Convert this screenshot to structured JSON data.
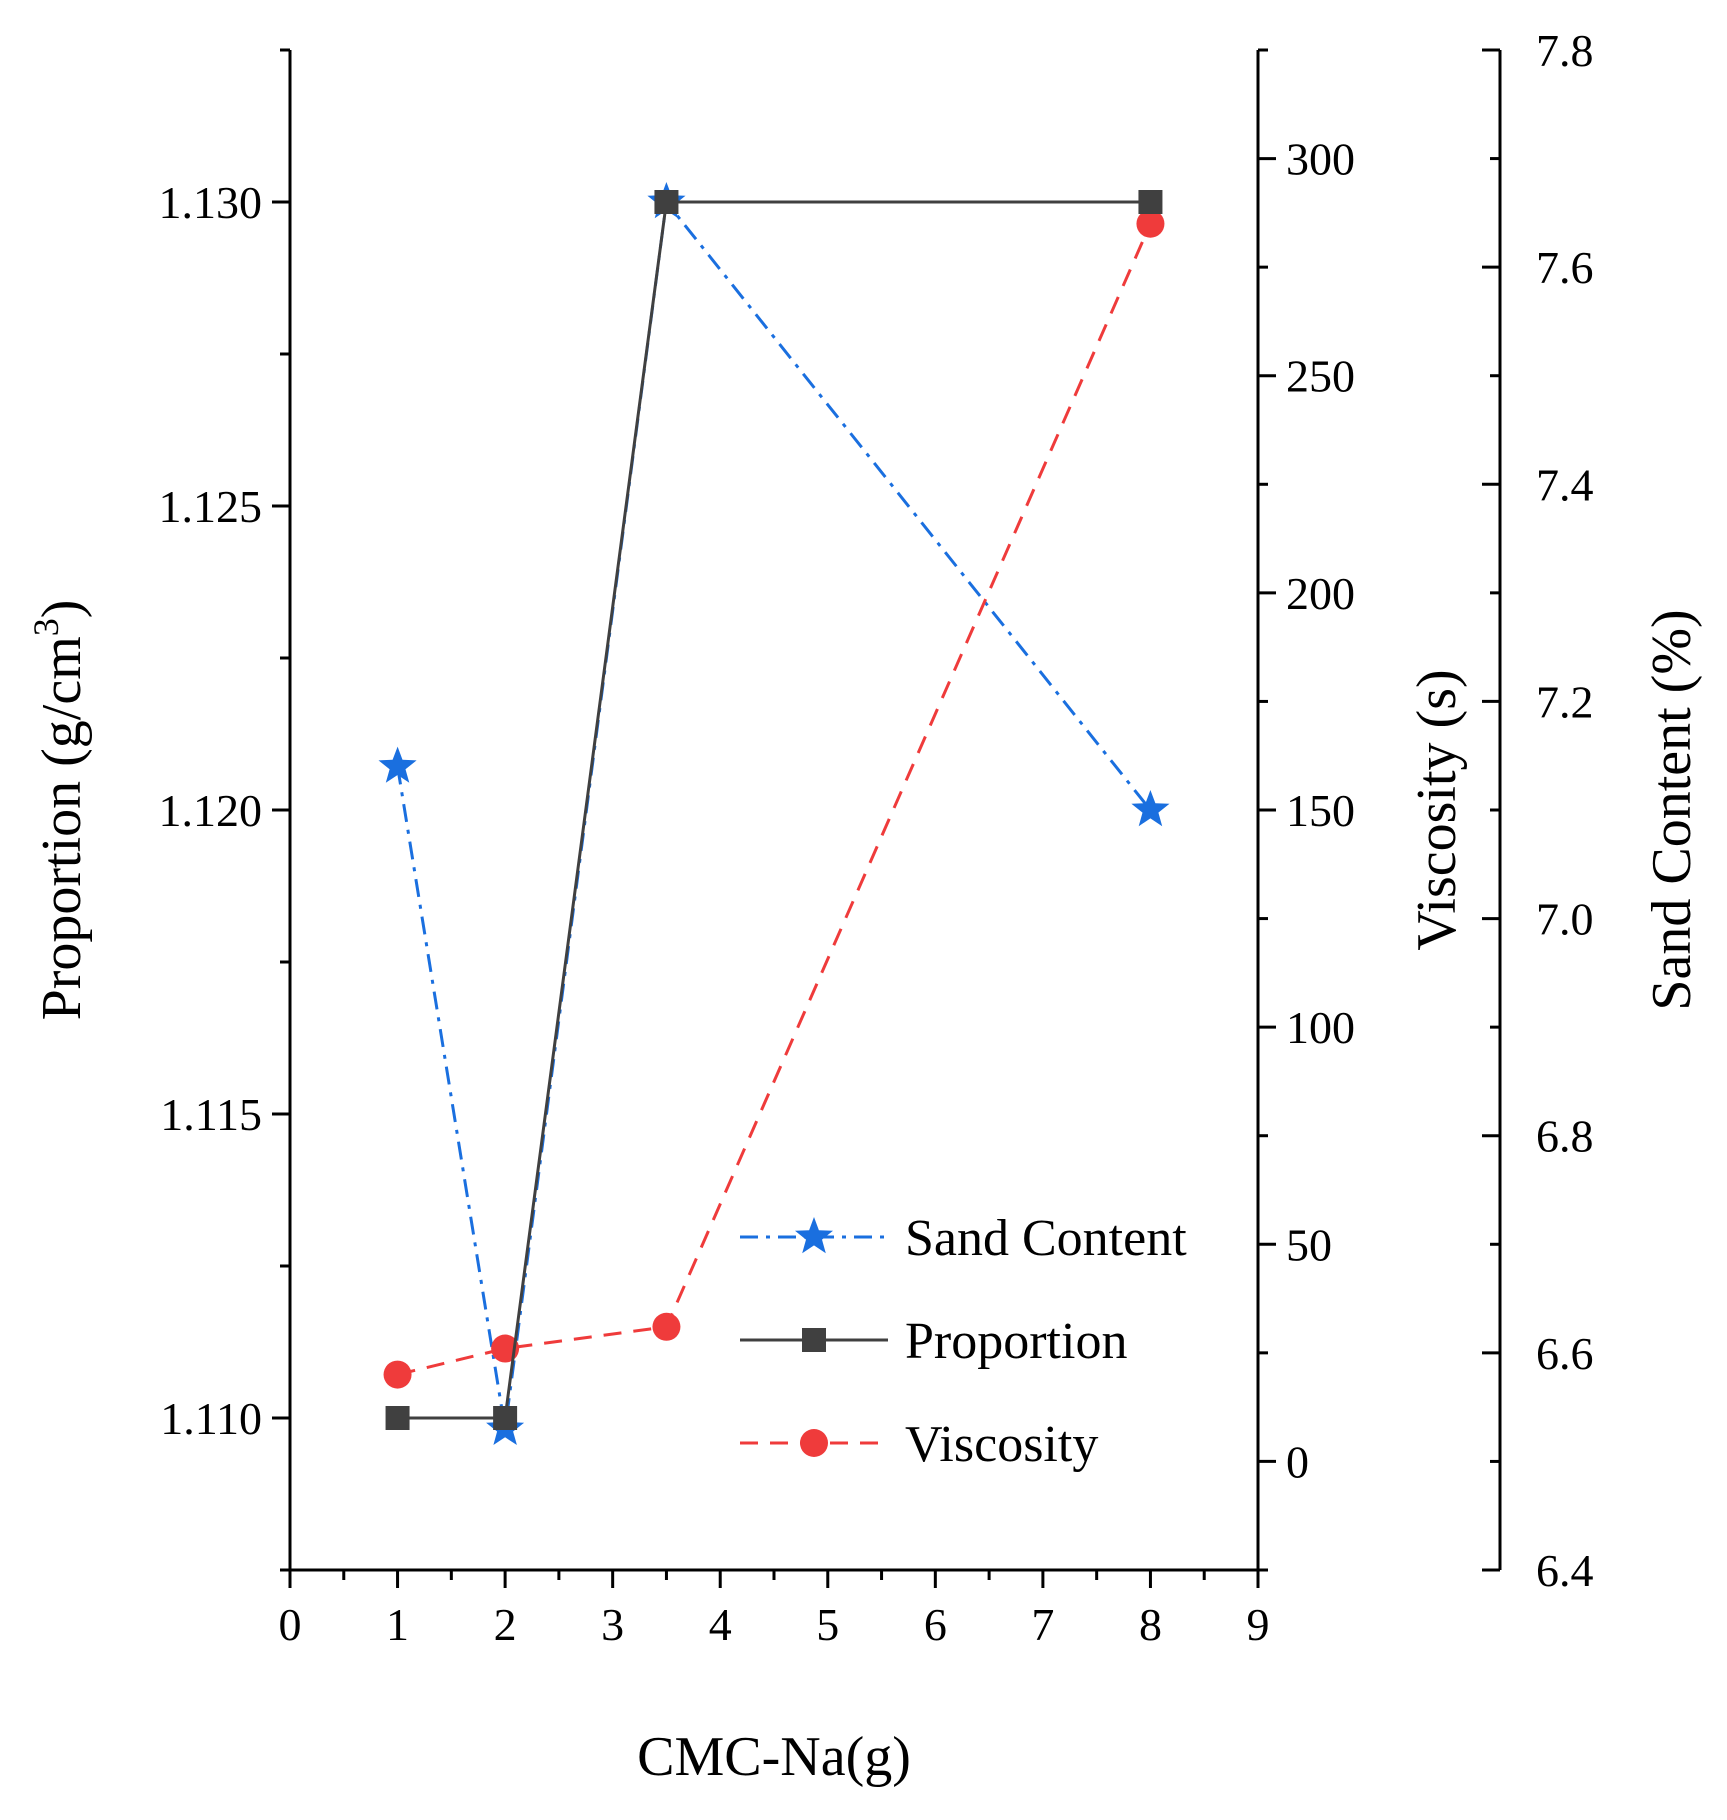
{
  "chart_data": {
    "type": "line",
    "title": "",
    "xlabel": "CMC-Na(g)",
    "xlim": [
      0,
      9
    ],
    "xticks": [
      "0",
      "1",
      "2",
      "3",
      "4",
      "5",
      "6",
      "7",
      "8",
      "9"
    ],
    "legend_position": "bottom-right",
    "axes": {
      "proportion": {
        "label_prefix": "Proportion (g/cm",
        "label_superscript": "3",
        "label_suffix": ")",
        "side": "left",
        "ylim": [
          1.1075,
          1.1325
        ],
        "ticks": [
          "1.110",
          "1.115",
          "1.120",
          "1.125",
          "1.130"
        ]
      },
      "viscosity": {
        "label": "Viscosity (s)",
        "side": "right-inner",
        "ylim": [
          -25,
          325
        ],
        "ticks": [
          "0",
          "50",
          "100",
          "150",
          "200",
          "250",
          "300"
        ]
      },
      "sand": {
        "label": "Sand Content (%)",
        "side": "right-outer",
        "ylim": [
          6.4,
          7.8
        ],
        "ticks": [
          "6.4",
          "6.6",
          "6.8",
          "7.0",
          "7.2",
          "7.4",
          "7.6",
          "7.8"
        ]
      }
    },
    "series": [
      {
        "name": "Sand Content",
        "axis": "sand",
        "color": "#1a6fdf",
        "marker": "star",
        "line_style": "dashdot",
        "x": [
          1,
          2,
          3.5,
          8
        ],
        "y": [
          7.14,
          6.53,
          7.66,
          7.1
        ]
      },
      {
        "name": "Proportion",
        "axis": "proportion",
        "color": "#404040",
        "marker": "square",
        "line_style": "solid",
        "x": [
          1,
          2,
          3.5,
          8
        ],
        "y": [
          1.11,
          1.11,
          1.13,
          1.13
        ]
      },
      {
        "name": "Viscosity",
        "axis": "viscosity",
        "color": "#ef3b3b",
        "marker": "circle",
        "line_style": "dashed",
        "x": [
          1,
          2,
          3.5,
          8
        ],
        "y": [
          20,
          26,
          31,
          285
        ]
      }
    ]
  }
}
